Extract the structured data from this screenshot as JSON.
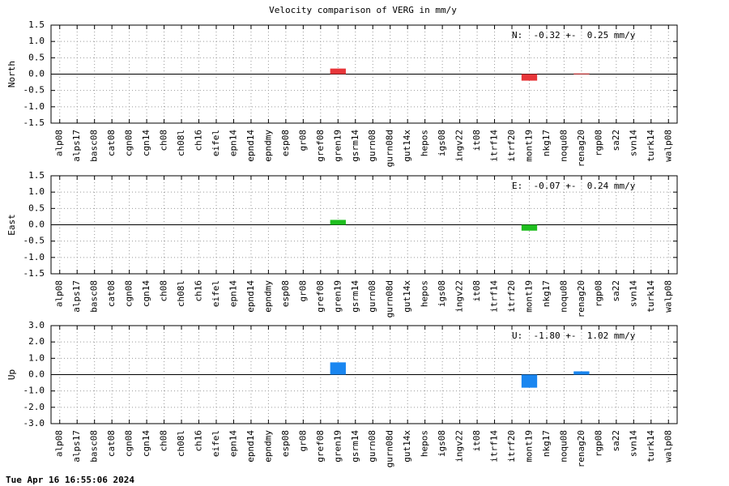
{
  "title": "Velocity comparison of VERG in mm/y",
  "timestamp": "Tue Apr 16 16:55:06 2024",
  "chart_data": [
    {
      "type": "bar",
      "ylabel": "North",
      "annotation": "N:  -0.32 +-  0.25 mm/y",
      "color": "#e8363a",
      "grid": true,
      "categories": [
        "alp08",
        "alps17",
        "basc08",
        "cat08",
        "cgn08",
        "cgn14",
        "ch08",
        "ch08l",
        "ch16",
        "eifel",
        "epn14",
        "epnd14",
        "epndmy",
        "esp08",
        "gr08",
        "gref08",
        "gren19",
        "gsrm14",
        "gurn08",
        "gurn08d",
        "gut14x",
        "hepos",
        "igs08",
        "ingv22",
        "it08",
        "itrf14",
        "itrf20",
        "mont19",
        "nkg17",
        "noqu08",
        "renag20",
        "rgp08",
        "sa22",
        "svn14",
        "turk14",
        "walp08"
      ],
      "values": [
        null,
        null,
        null,
        null,
        null,
        null,
        null,
        null,
        null,
        null,
        null,
        null,
        null,
        null,
        null,
        null,
        0.17,
        null,
        null,
        null,
        null,
        null,
        null,
        null,
        null,
        null,
        null,
        -0.2,
        null,
        null,
        0.02,
        null,
        null,
        null,
        null,
        null
      ],
      "ylim": [
        -1.5,
        1.5
      ],
      "yticks": [
        {
          "value": -1.5,
          "label": "-1.5"
        },
        {
          "value": -1,
          "label": "-1.0"
        },
        {
          "value": -0.5,
          "label": "-0.5"
        },
        {
          "value": 0,
          "label": "0.0"
        },
        0.5,
        {
          "value": 1,
          "label": "1.0"
        },
        1.5
      ]
    },
    {
      "type": "bar",
      "ylabel": "East",
      "annotation": "E:  -0.07 +-  0.24 mm/y",
      "color": "#1fbf1f",
      "grid": true,
      "categories": [
        "alp08",
        "alps17",
        "basc08",
        "cat08",
        "cgn08",
        "cgn14",
        "ch08",
        "ch08l",
        "ch16",
        "eifel",
        "epn14",
        "epnd14",
        "epndmy",
        "esp08",
        "gr08",
        "gref08",
        "gren19",
        "gsrm14",
        "gurn08",
        "gurn08d",
        "gut14x",
        "hepos",
        "igs08",
        "ingv22",
        "it08",
        "itrf14",
        "itrf20",
        "mont19",
        "nkg17",
        "noqu08",
        "renag20",
        "rgp08",
        "sa22",
        "svn14",
        "turk14",
        "walp08"
      ],
      "values": [
        null,
        null,
        null,
        null,
        null,
        null,
        null,
        null,
        null,
        null,
        null,
        null,
        null,
        null,
        null,
        null,
        0.15,
        null,
        null,
        null,
        null,
        null,
        null,
        null,
        null,
        null,
        null,
        -0.18,
        null,
        null,
        null,
        null,
        null,
        null,
        null,
        null
      ],
      "ylim": [
        -1.5,
        1.5
      ],
      "yticks": [
        {
          "value": -1.5,
          "label": "-1.5"
        },
        {
          "value": -1,
          "label": "-1.0"
        },
        {
          "value": -0.5,
          "label": "-0.5"
        },
        {
          "value": 0,
          "label": "0.0"
        },
        0.5,
        {
          "value": 1,
          "label": "1.0"
        },
        1.5
      ]
    },
    {
      "type": "bar",
      "ylabel": "Up",
      "annotation": "U:  -1.80 +-  1.02 mm/y",
      "color": "#1a86f0",
      "grid": true,
      "categories": [
        "alp08",
        "alps17",
        "basc08",
        "cat08",
        "cgn08",
        "cgn14",
        "ch08",
        "ch08l",
        "ch16",
        "eifel",
        "epn14",
        "epnd14",
        "epndmy",
        "esp08",
        "gr08",
        "gref08",
        "gren19",
        "gsrm14",
        "gurn08",
        "gurn08d",
        "gut14x",
        "hepos",
        "igs08",
        "ingv22",
        "it08",
        "itrf14",
        "itrf20",
        "mont19",
        "nkg17",
        "noqu08",
        "renag20",
        "rgp08",
        "sa22",
        "svn14",
        "turk14",
        "walp08"
      ],
      "values": [
        null,
        null,
        null,
        null,
        null,
        null,
        null,
        null,
        null,
        null,
        null,
        null,
        null,
        null,
        null,
        null,
        0.75,
        null,
        null,
        null,
        null,
        null,
        null,
        null,
        null,
        null,
        null,
        -0.8,
        null,
        null,
        0.2,
        null,
        null,
        null,
        null,
        null
      ],
      "ylim": [
        -3,
        3
      ],
      "yticks": [
        {
          "value": -3,
          "label": "-3.0"
        },
        {
          "value": -2,
          "label": "-2.0"
        },
        {
          "value": -1,
          "label": "-1.0"
        },
        {
          "value": 0,
          "label": "0.0"
        },
        {
          "value": 1,
          "label": "1.0"
        },
        {
          "value": 2,
          "label": "2.0"
        },
        {
          "value": 3,
          "label": "3.0"
        }
      ]
    }
  ]
}
